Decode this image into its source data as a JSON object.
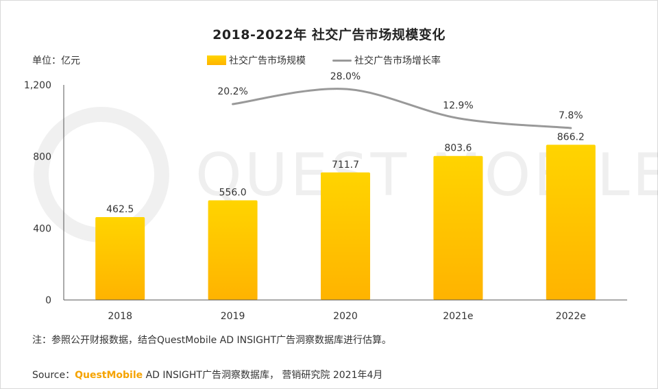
{
  "chart_data": {
    "type": "bar+line",
    "title": "2018-2022年 社交广告市场规模变化",
    "unit_label": "单位：亿元",
    "categories": [
      "2018",
      "2019",
      "2020",
      "2021e",
      "2022e"
    ],
    "series": [
      {
        "name": "社交广告市场规模",
        "type": "bar",
        "values": [
          462.5,
          556.0,
          711.7,
          803.6,
          866.2
        ],
        "labels": [
          "462.5",
          "556.0",
          "711.7",
          "803.6",
          "866.2"
        ]
      },
      {
        "name": "社交广告市场增长率",
        "type": "line",
        "values": [
          null,
          20.2,
          28.0,
          12.9,
          7.8
        ],
        "labels": [
          "",
          "20.2%",
          "28.0%",
          "12.9%",
          "7.8%"
        ]
      }
    ],
    "ylim": [
      0,
      1200
    ],
    "yticks": [
      "0",
      "400",
      "800",
      "1,200"
    ],
    "ytick_values": [
      0,
      400,
      800,
      1200
    ],
    "watermark": "QUEST MOBILE",
    "colors": {
      "bar_top": "#ffd400",
      "bar_bottom": "#ffb300",
      "line": "#999999",
      "axis": "#555555"
    }
  },
  "footer": {
    "note": "注：参照公开财报数据，结合QuestMobile AD INSIGHT广告洞察数据库进行估算。",
    "source_prefix": "Source：",
    "source_brand": "QuestMobile",
    "source_rest": " AD INSIGHT广告洞察数据库， 营销研究院 2021年4月"
  }
}
